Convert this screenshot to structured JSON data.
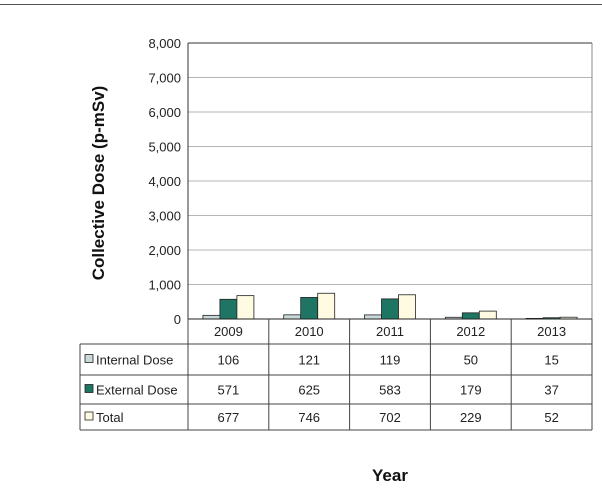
{
  "chart_data": {
    "type": "bar",
    "categories": [
      "2009",
      "2010",
      "2011",
      "2012",
      "2013"
    ],
    "series": [
      {
        "name": "Internal Dose",
        "values": [
          106,
          121,
          119,
          50,
          15
        ],
        "color": "#c9d8d8"
      },
      {
        "name": "External Dose",
        "values": [
          571,
          625,
          583,
          179,
          37
        ],
        "color": "#1e7563"
      },
      {
        "name": "Total",
        "values": [
          677,
          746,
          702,
          229,
          52
        ],
        "color": "#fffbe3"
      }
    ],
    "title": "",
    "xlabel": "Year",
    "ylabel": "Collective Dose (p-mSv)",
    "ylim": [
      0,
      8000
    ],
    "yticks": [
      "0",
      "1,000",
      "2,000",
      "3,000",
      "4,000",
      "5,000",
      "6,000",
      "7,000",
      "8,000"
    ],
    "grid": true,
    "legend": "data-table",
    "table": {
      "rows": [
        {
          "label": "Internal Dose",
          "cells": [
            "106",
            "121",
            "119",
            "50",
            "15"
          ]
        },
        {
          "label": "External Dose",
          "cells": [
            "571",
            "625",
            "583",
            "179",
            "37"
          ]
        },
        {
          "label": "Total",
          "cells": [
            "677",
            "746",
            "702",
            "229",
            "52"
          ]
        }
      ]
    }
  }
}
